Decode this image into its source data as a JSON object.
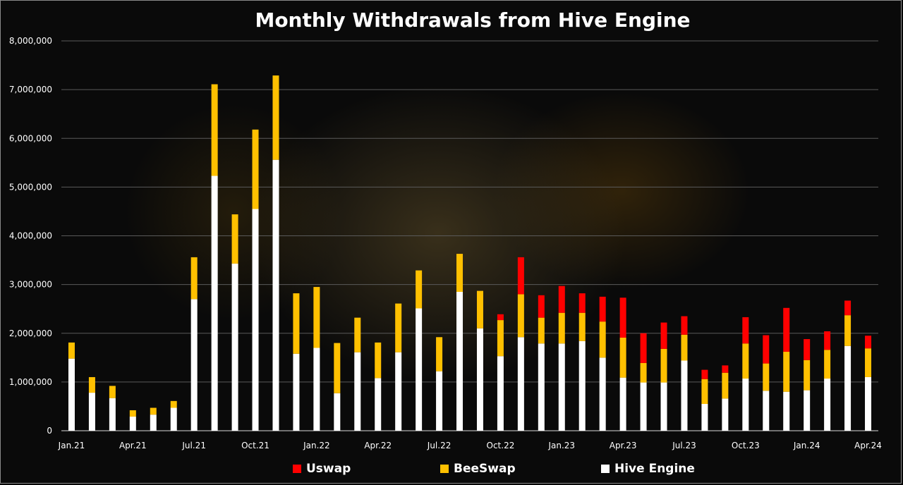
{
  "colors": {
    "uswap": "#ff0000",
    "beeswap": "#ffc000",
    "hive_engine": "#ffffff",
    "grid": "#5a5a5a",
    "text": "#ffffff"
  },
  "chart_data": {
    "type": "bar",
    "stacked": true,
    "title": "Monthly Withdrawals from Hive Engine",
    "xlabel": "",
    "ylabel": "",
    "ylim": [
      0,
      8000000
    ],
    "yticks": [
      "0",
      "1,000,000",
      "2,000,000",
      "3,000,000",
      "4,000,000",
      "5,000,000",
      "6,000,000",
      "7,000,000",
      "8,000,000"
    ],
    "ytick_values": [
      0,
      1000000,
      2000000,
      3000000,
      4000000,
      5000000,
      6000000,
      7000000,
      8000000
    ],
    "grid": true,
    "legend_position": "bottom",
    "categories": [
      "Jan.21",
      "Feb.21",
      "Mar.21",
      "Apr.21",
      "May.21",
      "Jun.21",
      "Jul.21",
      "Aug.21",
      "Sep.21",
      "Oct.21",
      "Nov.21",
      "Dec.21",
      "Jan.22",
      "Feb.22",
      "Mar.22",
      "Apr.22",
      "May.22",
      "Jun.22",
      "Jul.22",
      "Aug.22",
      "Sep.22",
      "Oct.22",
      "Nov.22",
      "Dec.22",
      "Jan.23",
      "Feb.23",
      "Mar.23",
      "Apr.23",
      "May.23",
      "Jun.23",
      "Jul.23",
      "Aug.23",
      "Sep.23",
      "Oct.23",
      "Nov.23",
      "Dec.23",
      "Jan.24",
      "Feb.24",
      "Mar.24",
      "Apr.24"
    ],
    "x_tick_labels": [
      "Jan.21",
      "",
      "",
      "Apr.21",
      "",
      "",
      "Jul.21",
      "",
      "",
      "Oct.21",
      "",
      "",
      "Jan.22",
      "",
      "",
      "Apr.22",
      "",
      "",
      "Jul.22",
      "",
      "",
      "Oct.22",
      "",
      "",
      "Jan.23",
      "",
      "",
      "Apr.23",
      "",
      "",
      "Jul.23",
      "",
      "",
      "Oct.23",
      "",
      "",
      "Jan.24",
      "",
      "",
      "Apr.24"
    ],
    "series": [
      {
        "name": "Hive Engine",
        "values": [
          1480000,
          780000,
          670000,
          290000,
          330000,
          470000,
          2700000,
          5230000,
          3430000,
          4550000,
          5560000,
          1580000,
          1700000,
          770000,
          1610000,
          1080000,
          1610000,
          2510000,
          1220000,
          2850000,
          2100000,
          1530000,
          1920000,
          1790000,
          1790000,
          1840000,
          1500000,
          1090000,
          990000,
          990000,
          1440000,
          550000,
          660000,
          1070000,
          820000,
          800000,
          830000,
          1070000,
          1740000,
          1100000
        ]
      },
      {
        "name": "BeeSwap",
        "values": [
          330000,
          320000,
          250000,
          130000,
          140000,
          140000,
          860000,
          1880000,
          1010000,
          1630000,
          1730000,
          1240000,
          1250000,
          1030000,
          710000,
          730000,
          1000000,
          780000,
          700000,
          780000,
          770000,
          740000,
          880000,
          530000,
          630000,
          580000,
          740000,
          820000,
          400000,
          690000,
          530000,
          510000,
          530000,
          720000,
          560000,
          820000,
          620000,
          590000,
          630000,
          590000
        ]
      },
      {
        "name": "Uswap",
        "values": [
          0,
          0,
          0,
          0,
          0,
          0,
          0,
          0,
          0,
          0,
          0,
          0,
          0,
          0,
          0,
          0,
          0,
          0,
          0,
          0,
          0,
          120000,
          760000,
          460000,
          550000,
          400000,
          510000,
          820000,
          610000,
          540000,
          380000,
          190000,
          150000,
          540000,
          580000,
          900000,
          430000,
          380000,
          300000,
          260000
        ]
      }
    ]
  },
  "legend": [
    {
      "label": "Uswap",
      "color_key": "uswap"
    },
    {
      "label": "BeeSwap",
      "color_key": "beeswap"
    },
    {
      "label": "Hive Engine",
      "color_key": "hive_engine"
    }
  ]
}
